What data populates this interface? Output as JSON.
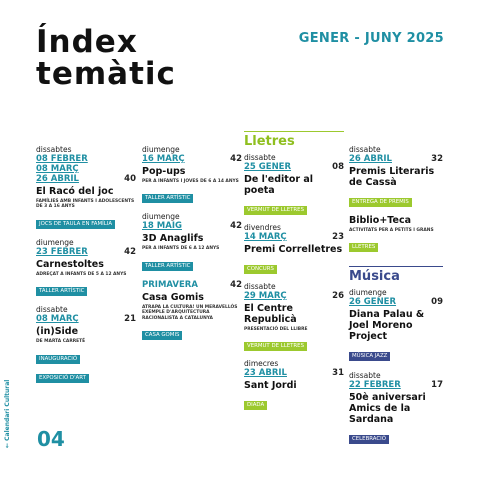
{
  "header": {
    "title_line1": "Índex",
    "title_line2": "temàtic",
    "period": "GENER - JUNY 2025"
  },
  "footer": {
    "side_label": "← Calendari Cultural",
    "page_number": "04"
  },
  "col1": [
    {
      "day": "dissabtes",
      "dates": [
        "08 FEBRER",
        "08 MARÇ",
        "26 ABRIL"
      ],
      "num": "40",
      "title": "El Racó del joc",
      "sub": "FAMÍLIES AMB INFANTS I ADOLESCENTS DE 3 A 16 ANYS",
      "tag": "JOCS DE TAULA EN FAMÍLIA"
    },
    {
      "day": "diumenge",
      "dates": [
        "23 FEBRER"
      ],
      "num": "42",
      "title": "Carnestoltes",
      "sub": "ADREÇAT A INFANTS DE 5 A 12 ANYS",
      "tag": "TALLER ARTÍSTIC"
    },
    {
      "day": "dissabte",
      "dates": [
        "08 MARÇ"
      ],
      "num": "21",
      "title": "(in)Side",
      "sub": "DE MARTA CARRETÉ",
      "tags": [
        "INAUGURACIÓ",
        "EXPOSICIÓ D'ART"
      ]
    }
  ],
  "col2": [
    {
      "day": "diumenge",
      "dates": [
        "16 MARÇ"
      ],
      "num": "42",
      "title": "Pop-ups",
      "sub": "PER A INFANTS I JOVES DE 6 A 14 ANYS",
      "tag": "TALLER ARTÍSTIC"
    },
    {
      "day": "diumenge",
      "dates": [
        "18 MAIG"
      ],
      "num": "42",
      "title": "3D Anaglifs",
      "sub": "PER A INFANTS DE 6 A 12 ANYS",
      "tag": "TALLER ARTÍSTIC"
    },
    {
      "label": "PRIMAVERA",
      "num": "42",
      "title": "Casa Gomis",
      "sub": "ATRAPA LA CULTURA! UN MERAVELLÓS EXEMPLE D'ARQUITECTURA RACIONALISTA A CATALUNYA",
      "tag": "CASA GOMIS"
    }
  ],
  "col3": {
    "section": "Lletres",
    "items": [
      {
        "day": "dissabte",
        "dates": [
          "25 GENER"
        ],
        "num": "08",
        "title": "De l'editor al poeta",
        "tag": "VERMUT DE LLETRES"
      },
      {
        "day": "divendres",
        "dates": [
          "14 MARÇ"
        ],
        "num": "23",
        "title": "Premi Correlletres",
        "tag": "CONCURS"
      },
      {
        "day": "dissabte",
        "dates": [
          "29 MARÇ"
        ],
        "num": "26",
        "title": "El Centre Republicà",
        "sub": "PRESENTACIÓ DEL LLIBRE",
        "tag": "VERMUT DE LLETRES"
      },
      {
        "day": "dimecres",
        "dates": [
          "23 ABRIL"
        ],
        "num": "31",
        "title": "Sant Jordi",
        "tag": "DIADA"
      }
    ]
  },
  "col4": {
    "items_top": [
      {
        "day": "dissabte",
        "dates": [
          "26 ABRIL"
        ],
        "num": "32",
        "title": "Premis Literaris de Cassà",
        "tag": "ENTREGA DE PREMIS"
      },
      {
        "title": "Biblio+Teca",
        "sub": "ACTIVITATS PER A PETITS I GRANS",
        "tag": "LLETRES"
      }
    ],
    "section": "Música",
    "items": [
      {
        "day": "diumenge",
        "dates": [
          "26 GENER"
        ],
        "num": "09",
        "title": "Diana Palau & Joel Moreno Project",
        "tag": "MÚSICA JAZZ"
      },
      {
        "day": "dissabte",
        "dates": [
          "22 FEBRER"
        ],
        "num": "17",
        "title": "50è aniversari Amics de la Sardana",
        "tag": "CELEBRACIÓ"
      }
    ]
  },
  "colors": {
    "teal": "#1f8fa3",
    "green": "#9cc92e",
    "navy": "#3a4a8c"
  }
}
